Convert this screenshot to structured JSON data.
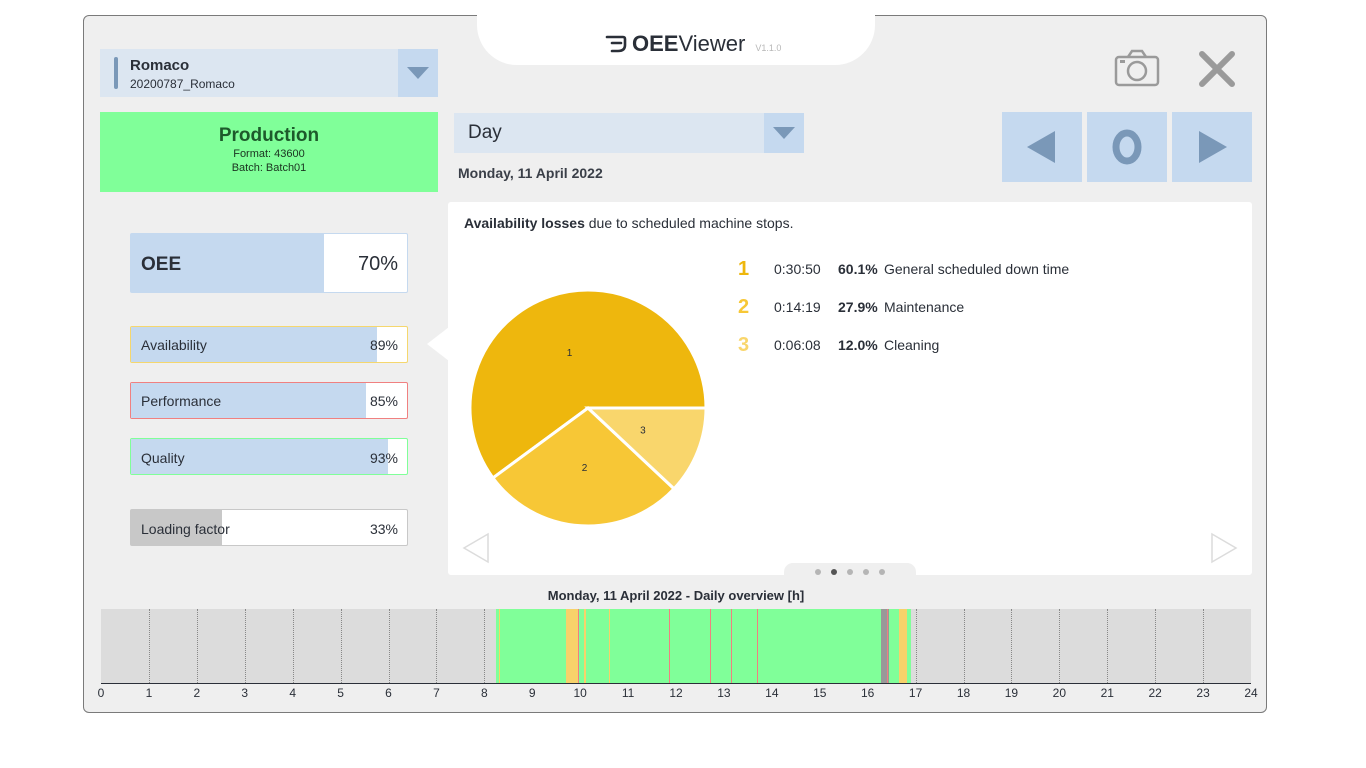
{
  "header": {
    "logo_bold": "OEE",
    "logo_regular": "Viewer",
    "version": "V1.1.0"
  },
  "icons": {
    "logo": "oee-logo-icon",
    "camera": "camera-icon",
    "close": "close-icon",
    "dropdown": "chevron-down-icon",
    "prev": "arrow-left-icon",
    "zero": "zero-icon",
    "next": "arrow-right-icon"
  },
  "machine": {
    "name": "Romaco",
    "id": "20200787_Romaco"
  },
  "status": {
    "title": "Production",
    "format": "Format: 43600",
    "batch": "Batch: Batch01",
    "color": "#80ff99"
  },
  "period": {
    "label": "Day",
    "date": "Monday, 11 April 2022",
    "zero_label": "0"
  },
  "kpis": {
    "oee": {
      "label": "OEE",
      "value": "70%",
      "level": 0.7,
      "border": "#c5d9ef"
    },
    "availability": {
      "label": "Availability",
      "value": "89%",
      "level": 0.89,
      "border": "#f5d76e"
    },
    "performance": {
      "label": "Performance",
      "value": "85%",
      "level": 0.85,
      "border": "#f08080"
    },
    "quality": {
      "label": "Quality",
      "value": "93%",
      "level": 0.93,
      "border": "#80ff99"
    },
    "loading": {
      "label": "Loading factor",
      "value": "33%",
      "level": 0.33,
      "border": "#c8c8c8"
    }
  },
  "panel": {
    "heading_bold": "Availability losses",
    "heading_rest": " due to scheduled machine stops.",
    "page_count": 5,
    "active_page": 2
  },
  "chart_data": {
    "type": "pie",
    "slices": [
      {
        "label": "1",
        "duration": "0:30:50",
        "percent": "60.1%",
        "value": 60.1,
        "name": "General scheduled down time",
        "color": "#eeb70d"
      },
      {
        "label": "2",
        "duration": "0:14:19",
        "percent": "27.9%",
        "value": 27.9,
        "name": "Maintenance",
        "color": "#f7c736"
      },
      {
        "label": "3",
        "duration": "0:06:08",
        "percent": "12.0%",
        "value": 12.0,
        "name": "Cleaning",
        "color": "#f9d66c"
      }
    ]
  },
  "timeline": {
    "title": "Monday, 11 April 2022 - Daily overview [h]",
    "x_min": 0,
    "x_max": 24,
    "ticks": [
      "0",
      "1",
      "2",
      "3",
      "4",
      "5",
      "6",
      "7",
      "8",
      "9",
      "10",
      "11",
      "12",
      "13",
      "14",
      "15",
      "16",
      "17",
      "18",
      "19",
      "20",
      "21",
      "22",
      "23",
      "24"
    ],
    "colors": {
      "production": "#80ff99",
      "scheduled": "#f7d26a",
      "stop": "#f08080",
      "off": "#999999"
    },
    "segments": [
      {
        "start": 8.25,
        "end": 9.7,
        "state": "production"
      },
      {
        "start": 9.7,
        "end": 9.98,
        "state": "scheduled"
      },
      {
        "start": 9.98,
        "end": 10.08,
        "state": "production"
      },
      {
        "start": 10.08,
        "end": 10.12,
        "state": "scheduled"
      },
      {
        "start": 10.12,
        "end": 16.28,
        "state": "production"
      },
      {
        "start": 16.28,
        "end": 16.45,
        "state": "off"
      },
      {
        "start": 16.45,
        "end": 16.65,
        "state": "production"
      },
      {
        "start": 16.65,
        "end": 16.82,
        "state": "scheduled"
      },
      {
        "start": 16.82,
        "end": 16.9,
        "state": "production"
      }
    ],
    "thin_marks": [
      {
        "at": 8.3,
        "state": "scheduled"
      },
      {
        "at": 9.95,
        "state": "stop"
      },
      {
        "at": 10.6,
        "state": "scheduled"
      },
      {
        "at": 11.85,
        "state": "stop"
      },
      {
        "at": 12.7,
        "state": "stop"
      },
      {
        "at": 13.15,
        "state": "stop"
      },
      {
        "at": 13.7,
        "state": "stop"
      },
      {
        "at": 16.4,
        "state": "stop"
      }
    ]
  }
}
